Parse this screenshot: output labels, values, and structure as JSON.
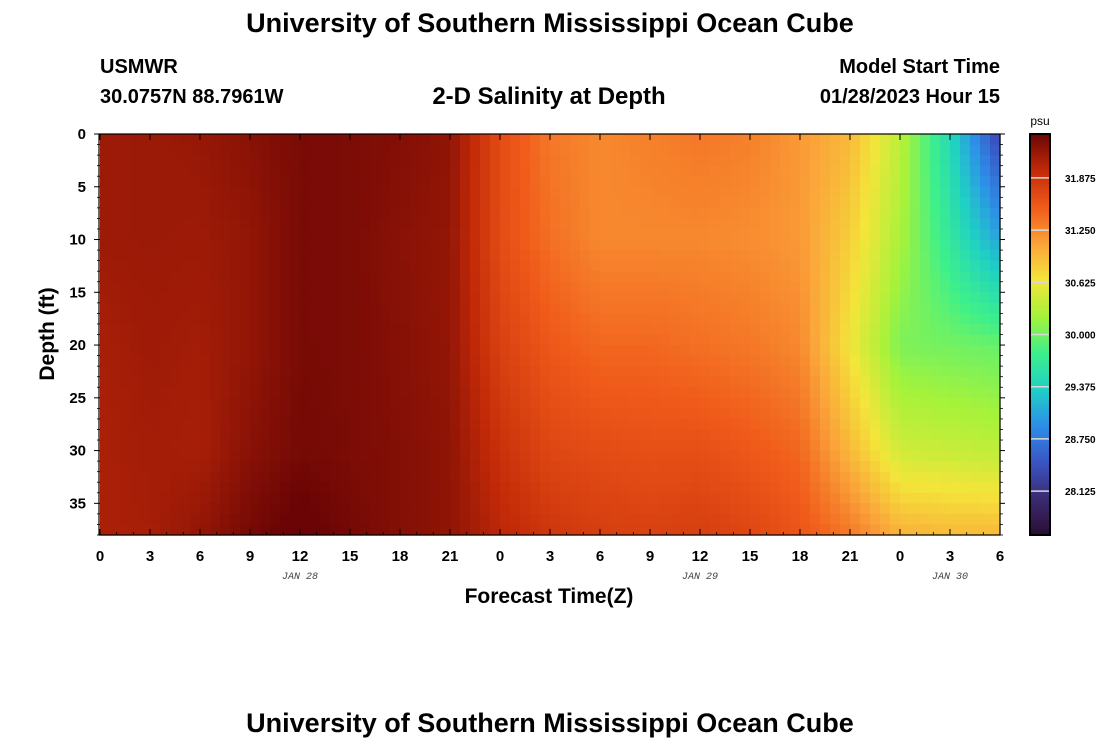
{
  "header": {
    "title": "University of Southern Mississippi Ocean Cube",
    "station": "USMWR",
    "coords": "30.0757N  88.7961W",
    "chart_title": "2-D Salinity at Depth",
    "model_label": "Model Start Time",
    "model_time": "01/28/2023 Hour 15"
  },
  "footer": {
    "title": "University of Southern Mississippi Ocean Cube"
  },
  "chart_data": {
    "type": "heatmap",
    "title": "2-D Salinity at Depth",
    "xlabel": "Forecast Time(Z)",
    "ylabel": "Depth (ft)",
    "x_tick_labels": [
      "0",
      "3",
      "6",
      "9",
      "12",
      "15",
      "18",
      "21",
      "0",
      "3",
      "6",
      "9",
      "12",
      "15",
      "18",
      "21",
      "0",
      "3",
      "6"
    ],
    "x_date_labels": [
      {
        "label": "JAN 28",
        "hour": 12
      },
      {
        "label": "JAN 29",
        "hour": 36
      },
      {
        "label": "JAN 30",
        "hour": 51
      }
    ],
    "x_range_hours": [
      0,
      54
    ],
    "y_ticks": [
      0,
      5,
      10,
      15,
      20,
      25,
      30,
      35
    ],
    "y_range": [
      0,
      38
    ],
    "y_inverted": true,
    "colorbar": {
      "unit": "psu",
      "ticks": [
        "31.875",
        "31.250",
        "30.625",
        "30.000",
        "29.375",
        "28.750",
        "28.125"
      ],
      "tick_values": [
        31.875,
        31.25,
        30.625,
        30.0,
        29.375,
        28.75,
        28.125
      ],
      "range": [
        27.6,
        32.4
      ],
      "colors": [
        "#2a0f33",
        "#3b2a72",
        "#3a55c4",
        "#2d8fe8",
        "#1fd0c4",
        "#3ef08a",
        "#a6f23a",
        "#f4e53a",
        "#fba33a",
        "#f05a1a",
        "#c22a08",
        "#6b0505"
      ]
    },
    "depth_profiles": [
      0,
      10,
      20,
      30,
      38
    ],
    "time_hours": [
      0,
      3,
      6,
      9,
      12,
      15,
      18,
      21,
      24,
      27,
      30,
      33,
      36,
      39,
      42,
      45,
      48,
      51,
      54
    ],
    "salinity": [
      [
        32.15,
        32.15,
        32.1,
        32.08,
        32.08
      ],
      [
        32.16,
        32.16,
        32.14,
        32.12,
        32.1
      ],
      [
        32.18,
        32.15,
        32.12,
        32.1,
        32.2
      ],
      [
        32.25,
        32.2,
        32.2,
        32.25,
        32.35
      ],
      [
        32.33,
        32.33,
        32.33,
        32.35,
        32.45
      ],
      [
        32.32,
        32.32,
        32.32,
        32.32,
        32.35
      ],
      [
        32.28,
        32.25,
        32.26,
        32.28,
        32.28
      ],
      [
        32.22,
        32.2,
        32.2,
        32.22,
        32.22
      ],
      [
        31.65,
        31.65,
        31.75,
        31.9,
        32.0
      ],
      [
        31.35,
        31.4,
        31.55,
        31.7,
        31.85
      ],
      [
        31.25,
        31.25,
        31.45,
        31.65,
        31.78
      ],
      [
        31.3,
        31.25,
        31.45,
        31.62,
        31.75
      ],
      [
        31.35,
        31.25,
        31.4,
        31.62,
        31.78
      ],
      [
        31.3,
        31.22,
        31.35,
        31.55,
        31.7
      ],
      [
        31.15,
        31.15,
        31.25,
        31.45,
        31.58
      ],
      [
        30.95,
        30.8,
        30.65,
        30.95,
        31.35
      ],
      [
        30.35,
        30.25,
        30.05,
        30.45,
        31.0
      ],
      [
        29.45,
        29.65,
        30.0,
        30.4,
        30.95
      ],
      [
        28.3,
        29.05,
        29.95,
        30.35,
        30.95
      ]
    ]
  }
}
